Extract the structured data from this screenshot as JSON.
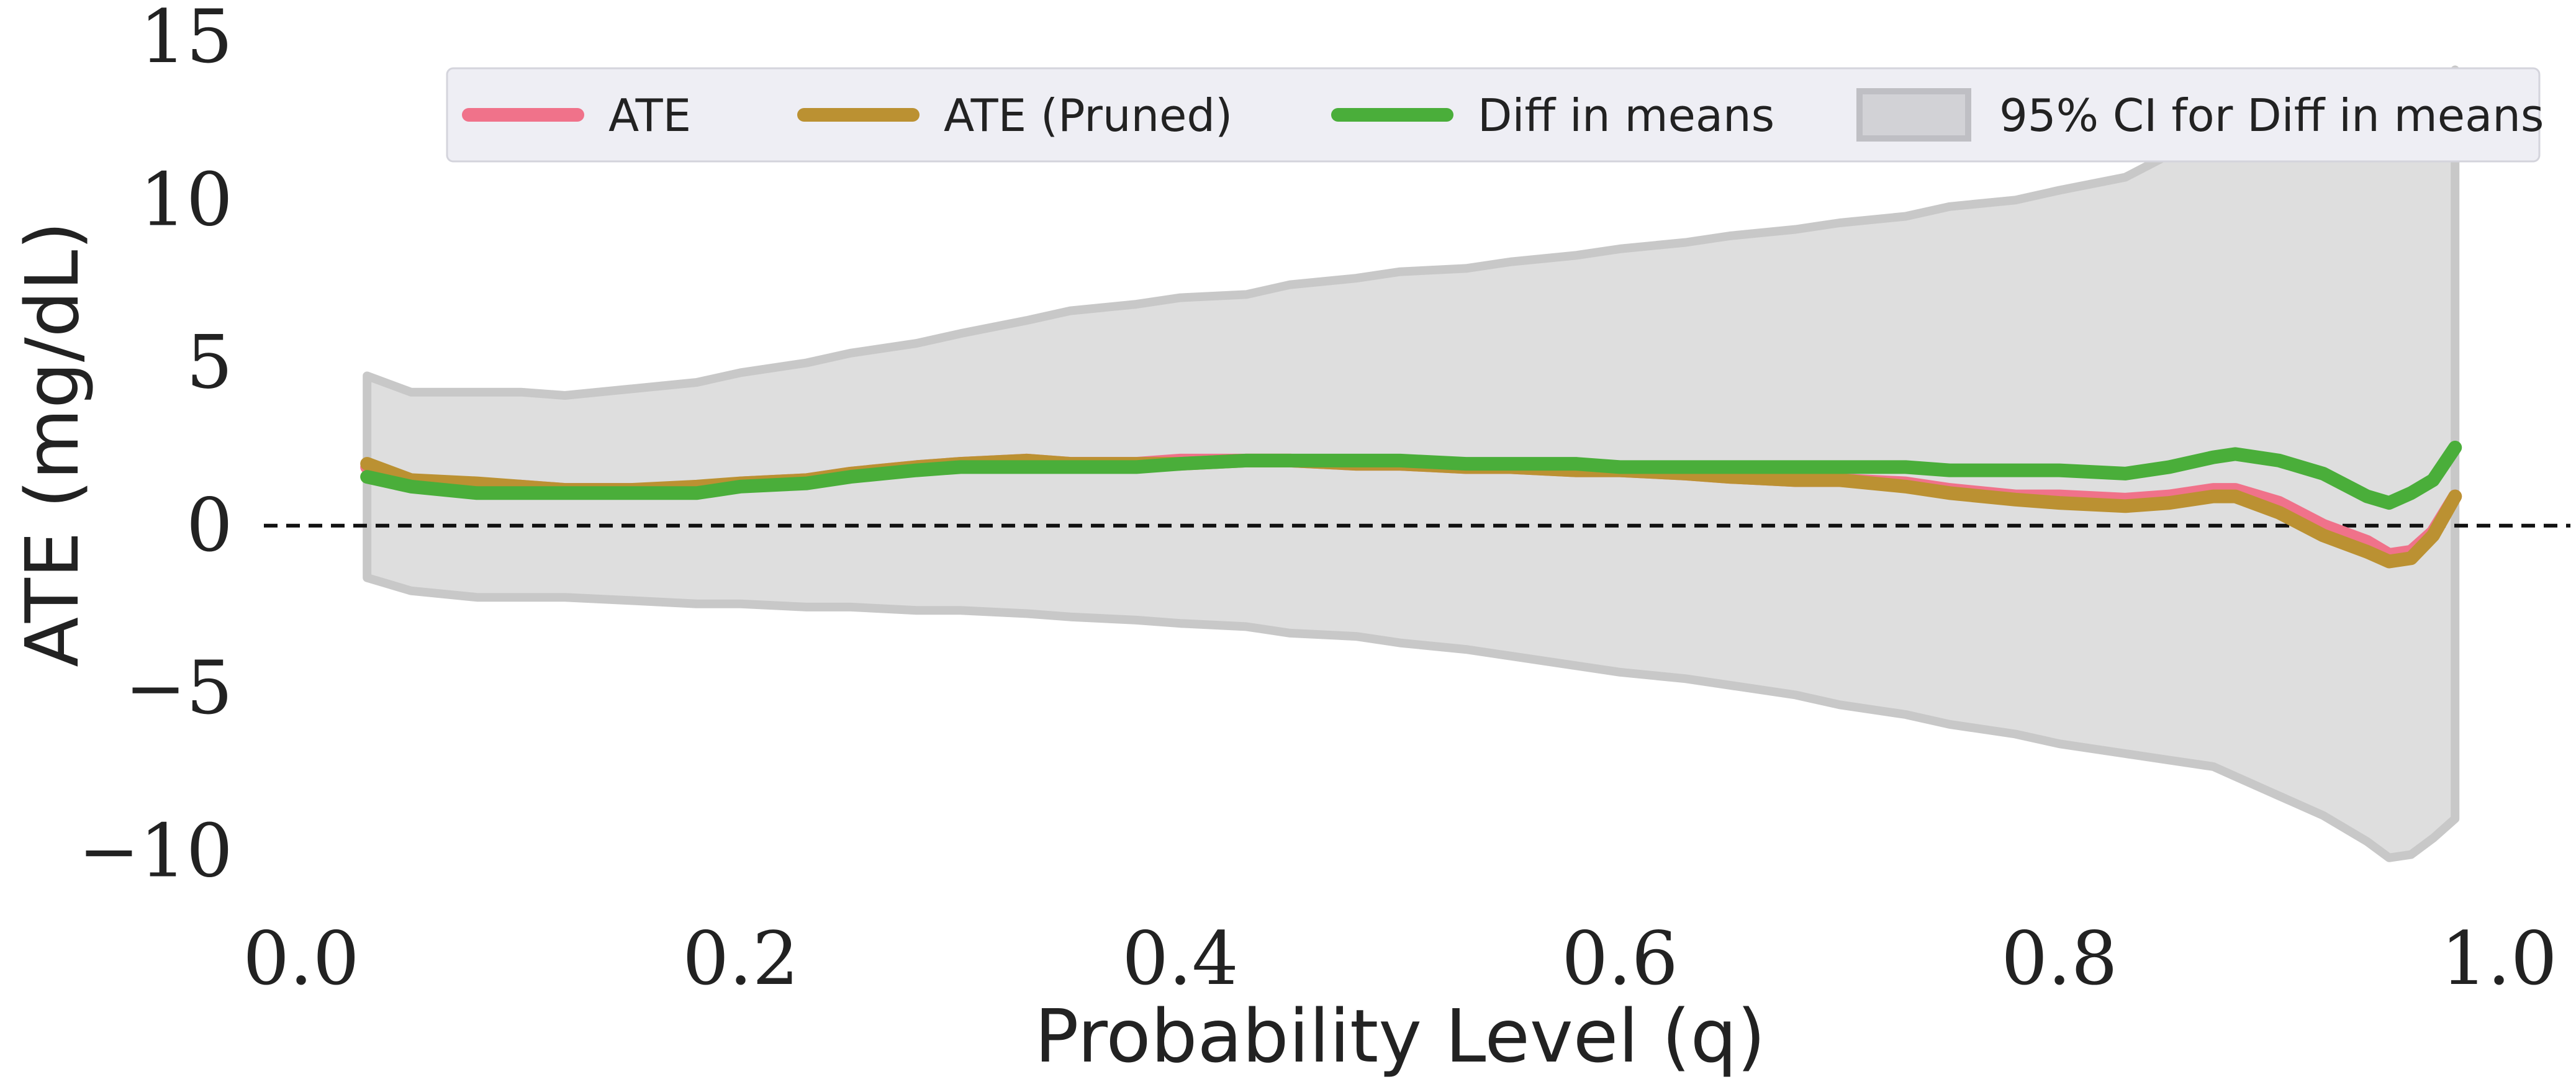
{
  "chart_data": {
    "type": "line",
    "xlabel": "Probability Level (q)",
    "ylabel": "ATE (mg/dL)",
    "xlim": [
      0.0,
      1.0
    ],
    "ylim": [
      -11.5,
      15
    ],
    "x_ticks": [
      0.0,
      0.2,
      0.4,
      0.6,
      0.8,
      1.0
    ],
    "x_tick_labels": [
      "0.0",
      "0.2",
      "0.4",
      "0.6",
      "0.8",
      "1.0"
    ],
    "y_ticks": [
      -10,
      -5,
      0,
      5,
      10,
      15
    ],
    "y_tick_labels": [
      "−10",
      "−5",
      "0",
      "5",
      "10",
      "15"
    ],
    "grid": false,
    "legend_position": "top-right",
    "reference_line": {
      "y": 0,
      "style": "dashed"
    },
    "x": [
      0.03,
      0.05,
      0.08,
      0.1,
      0.12,
      0.15,
      0.18,
      0.2,
      0.23,
      0.25,
      0.28,
      0.3,
      0.33,
      0.35,
      0.38,
      0.4,
      0.43,
      0.45,
      0.48,
      0.5,
      0.53,
      0.55,
      0.58,
      0.6,
      0.63,
      0.65,
      0.68,
      0.7,
      0.73,
      0.75,
      0.78,
      0.8,
      0.83,
      0.85,
      0.87,
      0.88,
      0.9,
      0.92,
      0.94,
      0.95,
      0.96,
      0.97,
      0.98
    ],
    "series": [
      {
        "name": "ATE",
        "color": "#f0728a",
        "values": [
          1.8,
          1.3,
          1.2,
          1.2,
          1.1,
          1.1,
          1.1,
          1.3,
          1.4,
          1.6,
          1.8,
          1.9,
          2.0,
          1.9,
          1.9,
          2.0,
          2.0,
          2.0,
          1.9,
          1.9,
          1.8,
          1.8,
          1.7,
          1.7,
          1.6,
          1.5,
          1.4,
          1.4,
          1.3,
          1.1,
          0.9,
          0.9,
          0.8,
          0.9,
          1.1,
          1.1,
          0.7,
          0.0,
          -0.5,
          -0.9,
          -0.8,
          -0.2,
          0.9
        ]
      },
      {
        "name": "ATE (Pruned)",
        "color": "#bb9132",
        "values": [
          1.9,
          1.4,
          1.3,
          1.2,
          1.1,
          1.1,
          1.2,
          1.3,
          1.4,
          1.6,
          1.8,
          1.9,
          2.0,
          1.9,
          1.9,
          1.9,
          2.0,
          2.0,
          1.9,
          1.9,
          1.8,
          1.8,
          1.7,
          1.7,
          1.6,
          1.5,
          1.4,
          1.4,
          1.2,
          1.0,
          0.8,
          0.7,
          0.6,
          0.7,
          0.9,
          0.9,
          0.4,
          -0.3,
          -0.8,
          -1.1,
          -1.0,
          -0.3,
          0.9
        ]
      },
      {
        "name": "Diff in means",
        "color": "#4aae3a",
        "values": [
          1.5,
          1.2,
          1.0,
          1.0,
          1.0,
          1.0,
          1.0,
          1.2,
          1.3,
          1.5,
          1.7,
          1.8,
          1.8,
          1.8,
          1.8,
          1.9,
          2.0,
          2.0,
          2.0,
          2.0,
          1.9,
          1.9,
          1.9,
          1.8,
          1.8,
          1.8,
          1.8,
          1.8,
          1.8,
          1.7,
          1.7,
          1.7,
          1.6,
          1.8,
          2.1,
          2.2,
          2.0,
          1.6,
          0.9,
          0.7,
          1.0,
          1.4,
          2.4
        ]
      }
    ],
    "band": {
      "name": "95% CI for Diff in means",
      "color": "#dedede",
      "lower": [
        -1.6,
        -2.0,
        -2.2,
        -2.2,
        -2.2,
        -2.3,
        -2.4,
        -2.4,
        -2.5,
        -2.5,
        -2.6,
        -2.6,
        -2.7,
        -2.8,
        -2.9,
        -3.0,
        -3.1,
        -3.3,
        -3.4,
        -3.6,
        -3.8,
        -4.0,
        -4.3,
        -4.5,
        -4.7,
        -4.9,
        -5.2,
        -5.5,
        -5.8,
        -6.1,
        -6.4,
        -6.7,
        -7.0,
        -7.2,
        -7.4,
        -7.7,
        -8.3,
        -8.9,
        -9.7,
        -10.2,
        -10.1,
        -9.6,
        -9.0
      ],
      "upper": [
        4.6,
        4.1,
        4.1,
        4.1,
        4.0,
        4.2,
        4.4,
        4.7,
        5.0,
        5.3,
        5.6,
        5.9,
        6.3,
        6.6,
        6.8,
        7.0,
        7.1,
        7.4,
        7.6,
        7.8,
        7.9,
        8.1,
        8.3,
        8.5,
        8.7,
        8.9,
        9.1,
        9.3,
        9.5,
        9.8,
        10.0,
        10.3,
        10.7,
        11.4,
        11.6,
        11.7,
        11.8,
        11.8,
        11.9,
        12.0,
        12.1,
        12.5,
        14.0
      ]
    }
  }
}
